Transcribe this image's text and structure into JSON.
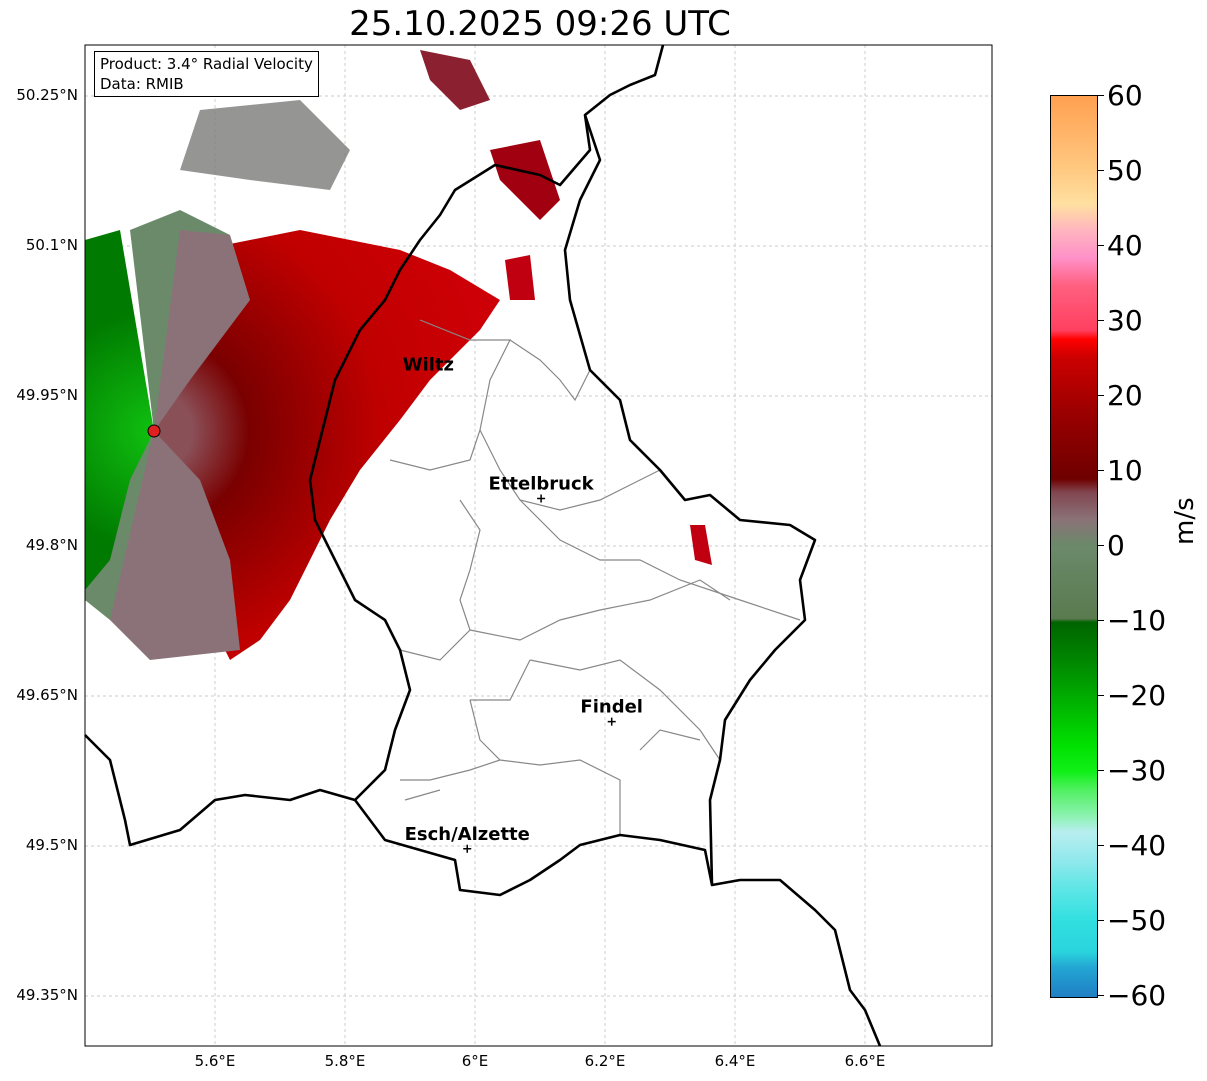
{
  "title": "25.10.2025 09:26 UTC",
  "legend": {
    "product": "Product: 3.4° Radial Velocity",
    "source": "Data: RMIB"
  },
  "map": {
    "lon_range": [
      5.4,
      6.8
    ],
    "lat_range": [
      49.3,
      50.3
    ],
    "radar_site": {
      "lon": 5.507,
      "lat": 49.914
    }
  },
  "lat_ticks": [
    "50.25°N",
    "50.1°N",
    "49.95°N",
    "49.8°N",
    "49.65°N",
    "49.5°N",
    "49.35°N"
  ],
  "lon_ticks": [
    "5.6°E",
    "5.8°E",
    "6°E",
    "6.2°E",
    "6.4°E",
    "6.6°E"
  ],
  "cities": [
    {
      "name": "Wiltz",
      "lon": 5.93,
      "lat": 49.966,
      "marker": false
    },
    {
      "name": "Ettelbruck",
      "lon": 6.104,
      "lat": 49.847,
      "marker": true
    },
    {
      "name": "Findel",
      "lon": 6.213,
      "lat": 49.624,
      "marker": true
    },
    {
      "name": "Esch/Alzette",
      "lon": 5.99,
      "lat": 49.497,
      "marker": true
    }
  ],
  "colorbar": {
    "label": "m/s",
    "ticks": [
      "60",
      "50",
      "40",
      "30",
      "20",
      "10",
      "0",
      "−10",
      "−20",
      "−30",
      "−40",
      "−50",
      "−60"
    ],
    "range": [
      -60,
      60
    ]
  }
}
